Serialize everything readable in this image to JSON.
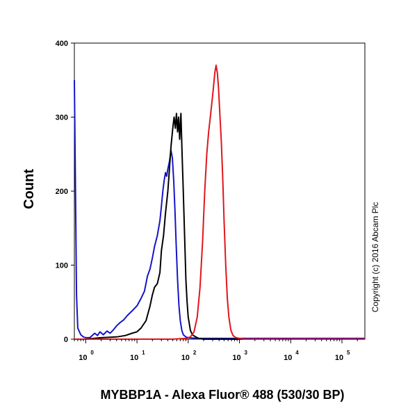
{
  "chart_data": {
    "type": "line",
    "xlabel": "MYBBP1A - Alexa Fluor® 488 (530/30 BP)",
    "ylabel": "Count",
    "x_scale": "log",
    "xlim": [
      0.6,
      280000
    ],
    "ylim": [
      0,
      400
    ],
    "y_ticks": [
      0,
      100,
      200,
      300,
      400
    ],
    "x_ticks": [
      {
        "value": 1,
        "base": "10",
        "exp": "0"
      },
      {
        "value": 10,
        "base": "10",
        "exp": "1"
      },
      {
        "value": 100,
        "base": "10",
        "exp": "2"
      },
      {
        "value": 1000,
        "base": "10",
        "exp": "3"
      },
      {
        "value": 10000,
        "base": "10",
        "exp": "4"
      },
      {
        "value": 100000,
        "base": "10",
        "exp": "5"
      }
    ],
    "grid": false,
    "legend": "none",
    "annotation": "Copyright (c) 2016 Abcam Plc",
    "series": [
      {
        "color": "#1515c8",
        "x": [
          0.6,
          0.62,
          0.66,
          0.7,
          0.8,
          0.9,
          1.0,
          1.2,
          1.5,
          1.7,
          1.9,
          2.2,
          2.6,
          3.0,
          3.5,
          4.0,
          4.6,
          5.5,
          6.5,
          8.0,
          10,
          12,
          14,
          16,
          18,
          20,
          22,
          25,
          28,
          30,
          32,
          34,
          36,
          38,
          40,
          43,
          46,
          49,
          52,
          55,
          58,
          62,
          66,
          70,
          75,
          80,
          90,
          100,
          150,
          300,
          1000,
          10000,
          100000,
          280000
        ],
        "y": [
          350,
          250,
          60,
          15,
          6,
          3,
          2,
          2,
          8,
          5,
          10,
          6,
          11,
          8,
          13,
          18,
          22,
          26,
          32,
          38,
          45,
          55,
          65,
          85,
          95,
          110,
          125,
          140,
          160,
          180,
          200,
          215,
          225,
          220,
          230,
          240,
          255,
          245,
          215,
          175,
          130,
          80,
          45,
          25,
          12,
          6,
          3,
          2,
          1,
          1,
          1,
          1,
          1,
          1
        ]
      },
      {
        "color": "#000000",
        "x": [
          0.6,
          1.0,
          2.0,
          4.0,
          6.0,
          8.0,
          10,
          12,
          15,
          18,
          20,
          22,
          25,
          28,
          30,
          33,
          36,
          40,
          43,
          46,
          50,
          53,
          56,
          59,
          62,
          65,
          68,
          72,
          76,
          80,
          85,
          90,
          95,
          100,
          110,
          120,
          140,
          160,
          200,
          300,
          1000,
          10000,
          100000,
          280000
        ],
        "y": [
          0,
          0,
          2,
          3,
          5,
          8,
          10,
          15,
          25,
          45,
          60,
          70,
          75,
          90,
          120,
          140,
          170,
          200,
          230,
          260,
          285,
          300,
          285,
          305,
          280,
          300,
          270,
          305,
          250,
          200,
          140,
          80,
          50,
          30,
          12,
          6,
          3,
          1,
          0,
          0,
          0,
          0,
          0,
          0
        ]
      },
      {
        "color": "#e0151c",
        "x": [
          0.6,
          10,
          50,
          90,
          110,
          130,
          150,
          170,
          190,
          210,
          230,
          250,
          270,
          290,
          310,
          330,
          350,
          370,
          390,
          410,
          440,
          470,
          500,
          540,
          580,
          620,
          680,
          750,
          850,
          1000,
          1200,
          1500,
          3000,
          10000,
          100000,
          280000
        ],
        "y": [
          0,
          0,
          0,
          1,
          3,
          10,
          30,
          70,
          130,
          200,
          250,
          280,
          300,
          320,
          340,
          360,
          370,
          360,
          340,
          310,
          270,
          220,
          160,
          100,
          55,
          30,
          12,
          5,
          2,
          1,
          0,
          0,
          0,
          0,
          0,
          0
        ]
      }
    ]
  }
}
